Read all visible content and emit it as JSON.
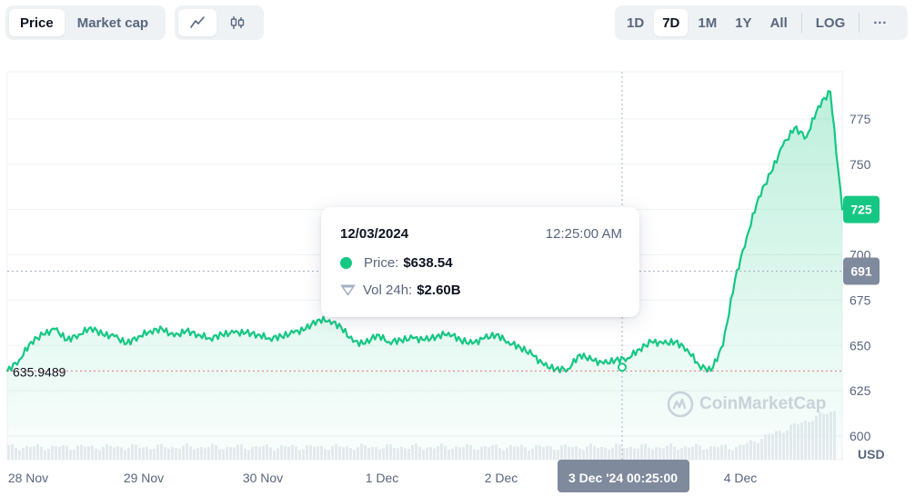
{
  "toolbar": {
    "metric_tabs": [
      {
        "label": "Price",
        "active": true
      },
      {
        "label": "Market cap",
        "active": false
      }
    ],
    "chart_type_tabs": [
      {
        "icon": "line-chart-icon",
        "active": true
      },
      {
        "icon": "candlestick-icon",
        "active": false
      }
    ],
    "range_tabs": [
      {
        "label": "1D",
        "active": false
      },
      {
        "label": "7D",
        "active": true
      },
      {
        "label": "1M",
        "active": false
      },
      {
        "label": "1Y",
        "active": false
      },
      {
        "label": "All",
        "active": false
      }
    ],
    "log_label": "LOG",
    "more_label": "···"
  },
  "tooltip": {
    "date": "12/03/2024",
    "time": "12:25:00 AM",
    "price_label": "Price:",
    "price_value": "$638.54",
    "volume_label": "Vol 24h:",
    "volume_value": "$2.60B"
  },
  "watermark": "CoinMarketCap",
  "colors": {
    "up": "#16c784",
    "down": "#ea3943",
    "axis_text": "#58667e",
    "current_badge": "#16c784",
    "hover_badge": "#808a9d"
  },
  "chart_data": {
    "type": "line",
    "ylabel": "USD",
    "ylim": [
      587,
      801
    ],
    "y_ticks": [
      600,
      625,
      650,
      675,
      700,
      725,
      750,
      775
    ],
    "x_ticks": [
      "28 Nov",
      "29 Nov",
      "30 Nov",
      "1 Dec",
      "2 Dec",
      "4 Dec"
    ],
    "hover_x_label": "3 Dec '24 00:25:00",
    "open_price_label": "635.9489",
    "open_price": 635.95,
    "current_price_label": "725",
    "current_price": 725,
    "hover_price_label": "691",
    "hover_price": 691,
    "grid": true,
    "series": [
      {
        "name": "Price",
        "x_days": [
          0.0,
          0.1,
          0.2,
          0.3,
          0.4,
          0.5,
          0.6,
          0.7,
          0.8,
          0.9,
          1.0,
          1.1,
          1.2,
          1.3,
          1.4,
          1.5,
          1.6,
          1.7,
          1.8,
          1.9,
          2.0,
          2.1,
          2.2,
          2.3,
          2.4,
          2.5,
          2.6,
          2.7,
          2.8,
          2.9,
          3.0,
          3.1,
          3.2,
          3.3,
          3.4,
          3.5,
          3.6,
          3.7,
          3.8,
          3.9,
          4.0,
          4.1,
          4.2,
          4.3,
          4.4,
          4.5,
          4.6,
          4.7,
          4.8,
          4.9,
          5.0,
          5.1,
          5.2,
          5.3,
          5.4,
          5.5,
          5.6,
          5.7,
          5.8,
          5.9,
          6.0,
          6.1,
          6.2,
          6.3,
          6.4,
          6.5,
          6.6,
          6.7,
          6.8,
          6.9,
          7.0
        ],
        "values": [
          636,
          642,
          652,
          656,
          659,
          653,
          656,
          660,
          656,
          655,
          651,
          655,
          658,
          659,
          655,
          658,
          656,
          654,
          656,
          657,
          657,
          656,
          654,
          655,
          657,
          659,
          664,
          664,
          660,
          652,
          651,
          656,
          652,
          653,
          654,
          653,
          655,
          657,
          653,
          651,
          654,
          656,
          652,
          649,
          645,
          639,
          637,
          637,
          645,
          642,
          640,
          642,
          643,
          648,
          652,
          651,
          652,
          648,
          639,
          636,
          650,
          686,
          710,
          732,
          745,
          760,
          770,
          765,
          782,
          790,
          725
        ]
      }
    ]
  }
}
